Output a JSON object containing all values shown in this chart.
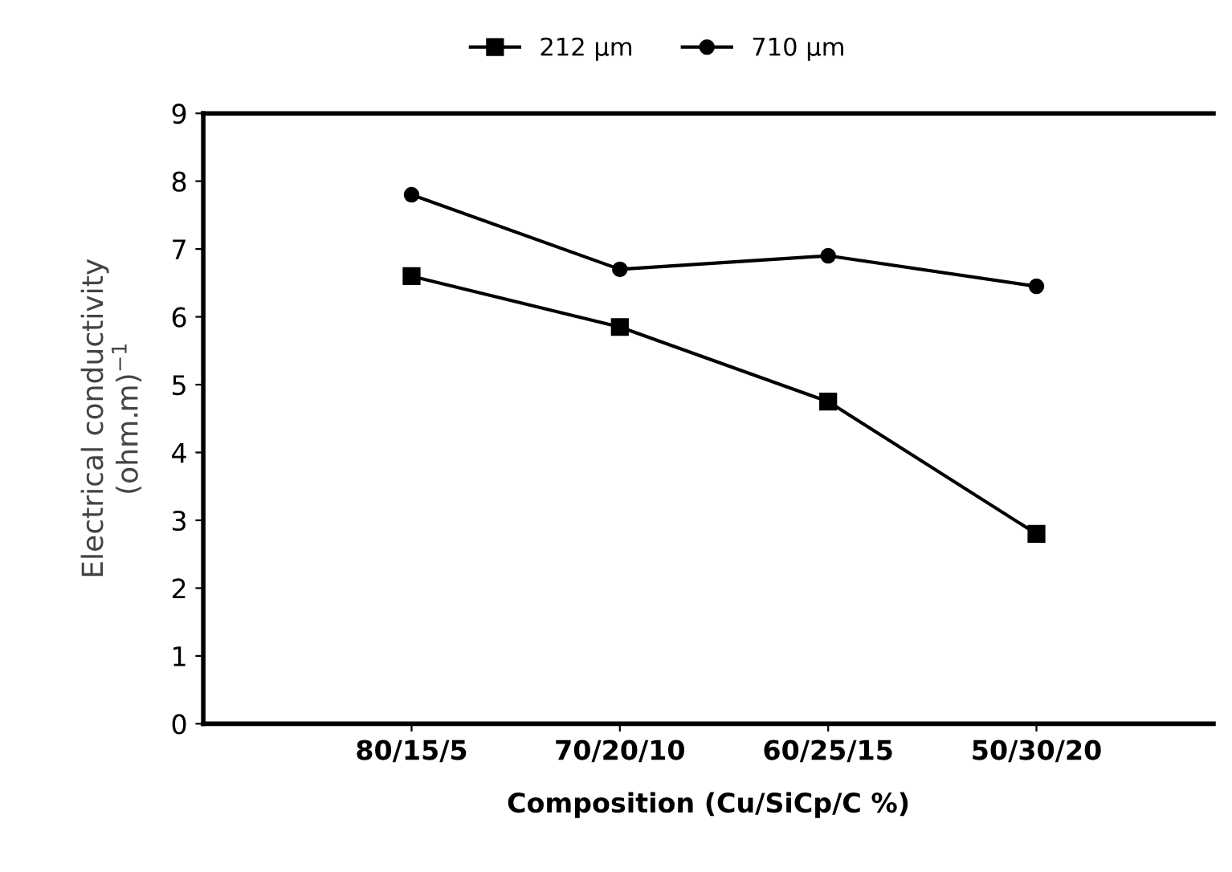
{
  "chart_data": {
    "type": "line",
    "categories": [
      "80/15/5",
      "70/20/10",
      "60/25/15",
      "50/30/20"
    ],
    "series": [
      {
        "name": "212 µm",
        "color": "#000000",
        "marker": "square",
        "values": [
          6.6,
          5.85,
          4.75,
          2.8
        ]
      },
      {
        "name": "710 µm",
        "color": "#000000",
        "marker": "circle",
        "values": [
          7.8,
          6.7,
          6.9,
          6.45
        ]
      }
    ],
    "xlabel": "Composition (Cu/SiCp/C %)",
    "ylabel": "Electrical conductivity\n(ohm.m)$^{−1}$",
    "ylim": [
      0,
      9
    ],
    "yticks": [
      0,
      1,
      2,
      3,
      4,
      5,
      6,
      7,
      8,
      9
    ],
    "grid": false,
    "legend": "top",
    "line_style": "solid"
  }
}
